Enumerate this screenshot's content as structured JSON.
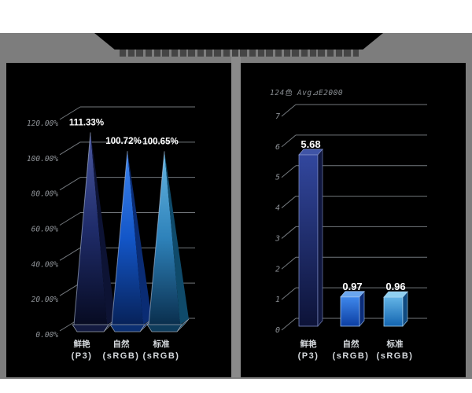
{
  "page": {
    "background": "#ffffff",
    "canvas_background": "#7d7d7d",
    "panel_background": "#000000",
    "banner_background": "#000000"
  },
  "header": {
    "title": ""
  },
  "colors": {
    "grid": "#73787d",
    "tick_text": "#8e9297",
    "value_text": "#ffffff",
    "category_text": "#d4d8dc",
    "series_left": [
      "#24367f",
      "#1d63d8",
      "#3a93c8"
    ],
    "series_right": [
      "#1d2d7a",
      "#1f63d4",
      "#2f8ac4"
    ]
  },
  "chart_data": [
    {
      "type": "bar",
      "variant": "3d-pyramid",
      "panel": "left",
      "title": "",
      "categories": [
        [
          "鲜艳",
          "(P3)"
        ],
        [
          "自然",
          "(sRGB)"
        ],
        [
          "标准",
          "(sRGB)"
        ]
      ],
      "values": [
        111.33,
        100.72,
        100.65
      ],
      "value_labels": [
        "111.33%",
        "100.72%",
        "100.65%"
      ],
      "ylim": [
        0,
        120
      ],
      "ytick_step": 20,
      "ytick_labels": [
        "0.00%",
        "20.00%",
        "40.00%",
        "60.00%",
        "80.00%",
        "100.00%",
        "120.00%"
      ],
      "grid": true,
      "legend": false
    },
    {
      "type": "bar",
      "variant": "3d-cuboid",
      "panel": "right",
      "title": "124色 Avg⊿E2000",
      "categories": [
        [
          "鲜艳",
          "(P3)"
        ],
        [
          "自然",
          "(sRGB)"
        ],
        [
          "标准",
          "(sRGB)"
        ]
      ],
      "values": [
        5.68,
        0.97,
        0.96
      ],
      "value_labels": [
        "5.68",
        "0.97",
        "0.96"
      ],
      "ylim": [
        0,
        7
      ],
      "ytick_step": 1,
      "ytick_labels": [
        "0",
        "1",
        "2",
        "3",
        "4",
        "5",
        "6",
        "7"
      ],
      "grid": true,
      "legend": false
    }
  ]
}
